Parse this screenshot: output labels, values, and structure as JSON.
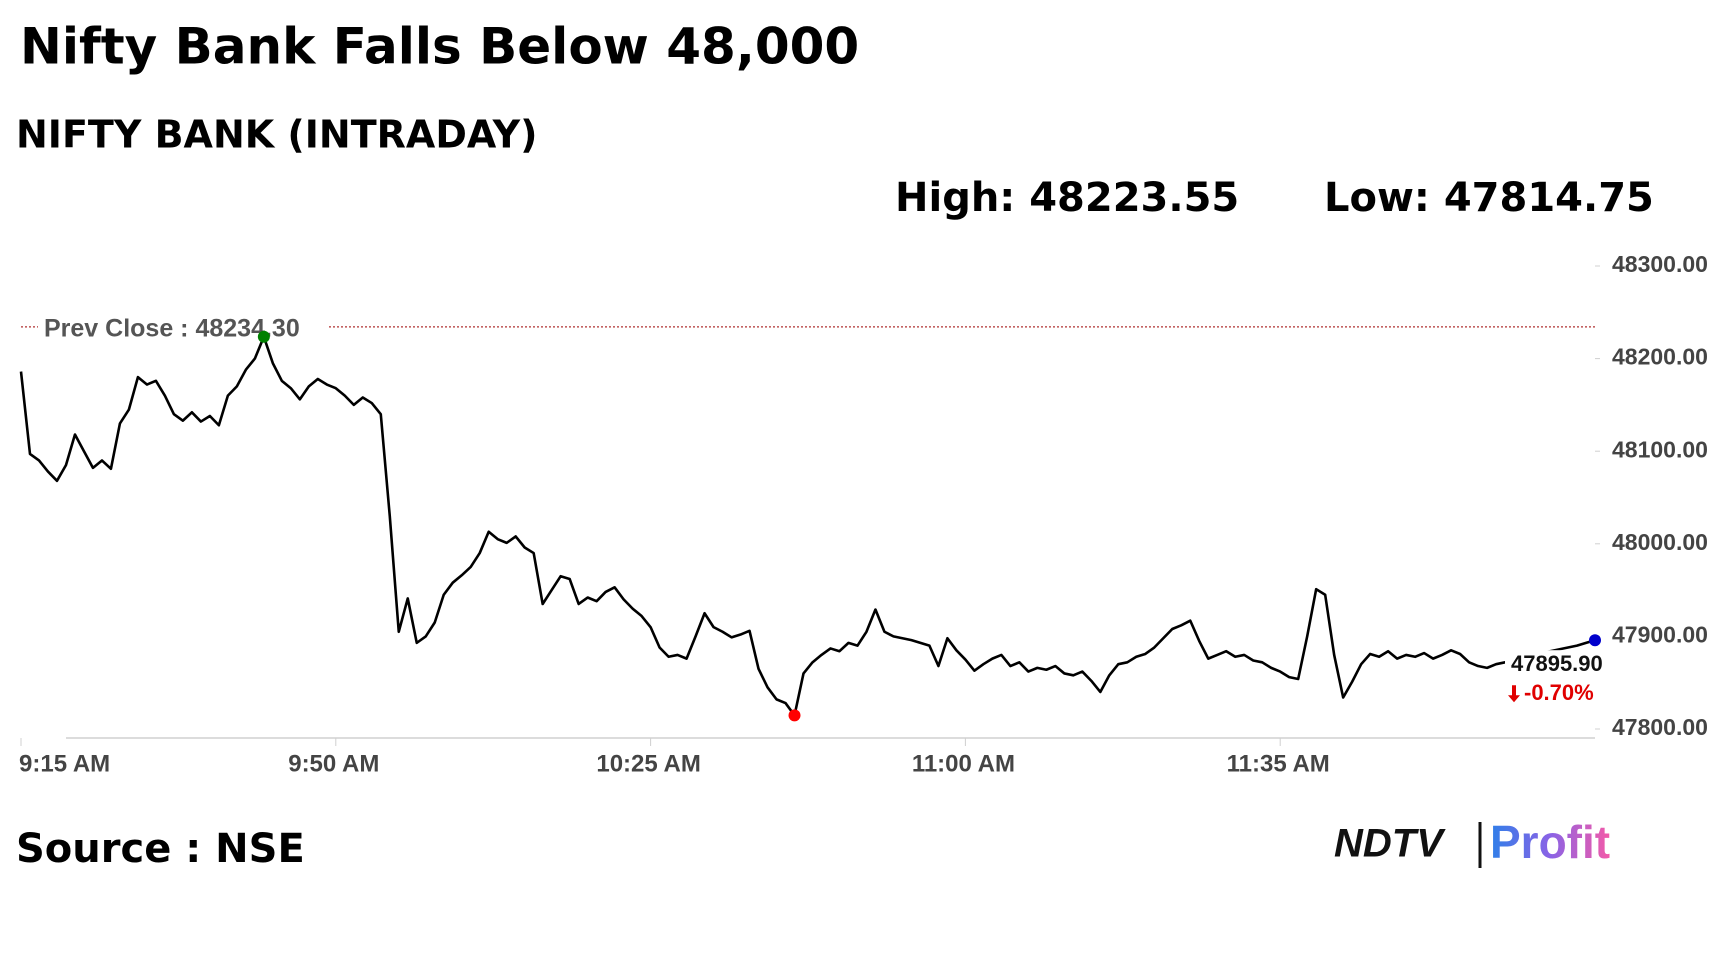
{
  "chart_data": {
    "type": "line",
    "title": "Nifty Bank Falls Below 48,000",
    "subtitle": "NIFTY BANK (INTRADAY)",
    "high_text": "High: 48223.55",
    "low_text": "Low: 47814.75",
    "prev_close_text": "Prev Close : 48234.30",
    "prev_close": 48234.3,
    "prev_close_color": "#b03030",
    "last_text": "47895.90",
    "change_text": "-0.70%",
    "change_color": "#e00000",
    "source": "Source : NSE",
    "logo_left": "NDTV",
    "logo_right": "Profit",
    "color": "#000000",
    "high_color": "#008000",
    "low_color": "#ff0000",
    "last_color": "#0000cc",
    "x": [
      "9:15 AM",
      "9:16 AM",
      "9:17 AM",
      "9:18 AM",
      "9:19 AM",
      "9:20 AM",
      "9:21 AM",
      "9:22 AM",
      "9:23 AM",
      "9:24 AM",
      "9:25 AM",
      "9:26 AM",
      "9:27 AM",
      "9:28 AM",
      "9:29 AM",
      "9:30 AM",
      "9:31 AM",
      "9:32 AM",
      "9:33 AM",
      "9:34 AM",
      "9:35 AM",
      "9:36 AM",
      "9:37 AM",
      "9:38 AM",
      "9:39 AM",
      "9:40 AM",
      "9:41 AM",
      "9:42 AM",
      "9:43 AM",
      "9:44 AM",
      "9:45 AM",
      "9:46 AM",
      "9:47 AM",
      "9:48 AM",
      "9:49 AM",
      "9:50 AM",
      "9:51 AM",
      "9:52 AM",
      "9:53 AM",
      "9:54 AM",
      "9:55 AM",
      "9:56 AM",
      "9:57 AM",
      "9:58 AM",
      "9:59 AM",
      "10:00 AM",
      "10:01 AM",
      "10:02 AM",
      "10:03 AM",
      "10:04 AM",
      "10:05 AM",
      "10:06 AM",
      "10:07 AM",
      "10:08 AM",
      "10:09 AM",
      "10:10 AM",
      "10:11 AM",
      "10:12 AM",
      "10:13 AM",
      "10:14 AM",
      "10:15 AM",
      "10:16 AM",
      "10:17 AM",
      "10:18 AM",
      "10:19 AM",
      "10:20 AM",
      "10:21 AM",
      "10:22 AM",
      "10:23 AM",
      "10:24 AM",
      "10:25 AM",
      "10:26 AM",
      "10:27 AM",
      "10:28 AM",
      "10:29 AM",
      "10:30 AM",
      "10:31 AM",
      "10:32 AM",
      "10:33 AM",
      "10:34 AM",
      "10:35 AM",
      "10:36 AM",
      "10:37 AM",
      "10:38 AM",
      "10:39 AM",
      "10:40 AM",
      "10:41 AM",
      "10:42 AM",
      "10:43 AM",
      "10:44 AM",
      "10:45 AM",
      "10:46 AM",
      "10:47 AM",
      "10:48 AM",
      "10:49 AM",
      "10:50 AM",
      "10:51 AM",
      "10:52 AM",
      "10:53 AM",
      "10:54 AM",
      "10:55 AM",
      "10:56 AM",
      "10:57 AM",
      "10:58 AM",
      "10:59 AM",
      "11:00 AM",
      "11:01 AM",
      "11:02 AM",
      "11:03 AM",
      "11:04 AM",
      "11:05 AM",
      "11:06 AM",
      "11:07 AM",
      "11:08 AM",
      "11:09 AM",
      "11:10 AM",
      "11:11 AM",
      "11:12 AM",
      "11:13 AM",
      "11:14 AM",
      "11:15 AM",
      "11:16 AM",
      "11:17 AM",
      "11:18 AM",
      "11:19 AM",
      "11:20 AM",
      "11:21 AM",
      "11:22 AM",
      "11:23 AM",
      "11:24 AM",
      "11:25 AM",
      "11:26 AM",
      "11:27 AM",
      "11:28 AM",
      "11:29 AM",
      "11:30 AM",
      "11:31 AM",
      "11:32 AM",
      "11:33 AM",
      "11:34 AM",
      "11:35 AM",
      "11:36 AM",
      "11:37 AM",
      "11:38 AM",
      "11:39 AM",
      "11:40 AM",
      "11:41 AM",
      "11:42 AM",
      "11:43 AM",
      "11:44 AM",
      "11:45 AM",
      "11:46 AM",
      "11:47 AM",
      "11:48 AM",
      "11:49 AM",
      "11:50 AM",
      "11:51 AM",
      "11:52 AM",
      "11:53 AM",
      "11:54 AM",
      "11:55 AM",
      "11:56 AM",
      "11:57 AM",
      "11:58 AM",
      "11:59 AM",
      "12:00 PM",
      "12:01 PM",
      "12:02 PM",
      "12:03 PM",
      "12:04 PM",
      "12:05 PM",
      "12:06 PM",
      "12:07 PM",
      "12:08 PM",
      "12:09 PM",
      "12:10 PM"
    ],
    "values": [
      48186,
      48097,
      48090,
      48078,
      48068,
      48085,
      48118,
      48100,
      48082,
      48090,
      48081,
      48130,
      48145,
      48180,
      48172,
      48176,
      48160,
      48140,
      48133,
      48142,
      48132,
      48138,
      48128,
      48160,
      48170,
      48188,
      48200,
      48223.55,
      48195,
      48176,
      48168,
      48156,
      48170,
      48178,
      48172,
      48168,
      48160,
      48150,
      48158,
      48152,
      48140,
      48030,
      47905,
      47941,
      47893,
      47900,
      47915,
      47945,
      47958,
      47966,
      47975,
      47990,
      48013,
      48005,
      48001,
      48008,
      47996,
      47990,
      47935,
      47950,
      47965,
      47962,
      47935,
      47942,
      47938,
      47948,
      47953,
      47940,
      47930,
      47922,
      47910,
      47888,
      47878,
      47880,
      47876,
      47900,
      47925,
      47910,
      47905,
      47899,
      47902,
      47906,
      47865,
      47845,
      47832,
      47828,
      47814.75,
      47860,
      47872,
      47880,
      47887,
      47884,
      47893,
      47890,
      47905,
      47929,
      47905,
      47900,
      47898,
      47896,
      47893,
      47890,
      47868,
      47898,
      47885,
      47875,
      47863,
      47870,
      47876,
      47880,
      47868,
      47872,
      47862,
      47866,
      47864,
      47868,
      47860,
      47858,
      47862,
      47852,
      47840,
      47858,
      47870,
      47872,
      47878,
      47881,
      47888,
      47898,
      47908,
      47912,
      47917,
      47895,
      47876,
      47880,
      47884,
      47878,
      47880,
      47874,
      47872,
      47866,
      47862,
      47856,
      47854,
      47900,
      47951,
      47945,
      47880,
      47834,
      47851,
      47870,
      47881,
      47878,
      47884,
      47876,
      47880,
      47878,
      47882,
      47876,
      47880,
      47885,
      47881,
      47872,
      47868,
      47866,
      47870,
      47872,
      47875,
      47878,
      47880,
      47882,
      47884,
      47886,
      47888,
      47890,
      47893,
      47895.9
    ],
    "xticks": [
      "9:15 AM",
      "9:50 AM",
      "10:25 AM",
      "11:00 AM",
      "11:35 AM"
    ],
    "ylim": [
      47800,
      48300
    ],
    "yticks": [
      {
        "value": 47800,
        "label": "47800.00"
      },
      {
        "value": 47900,
        "label": "47900.00"
      },
      {
        "value": 48000,
        "label": "48000.00"
      },
      {
        "value": 48100,
        "label": "48100.00"
      },
      {
        "value": 48200,
        "label": "48200.00"
      },
      {
        "value": 48300,
        "label": "48300.00"
      }
    ],
    "grid": false
  }
}
